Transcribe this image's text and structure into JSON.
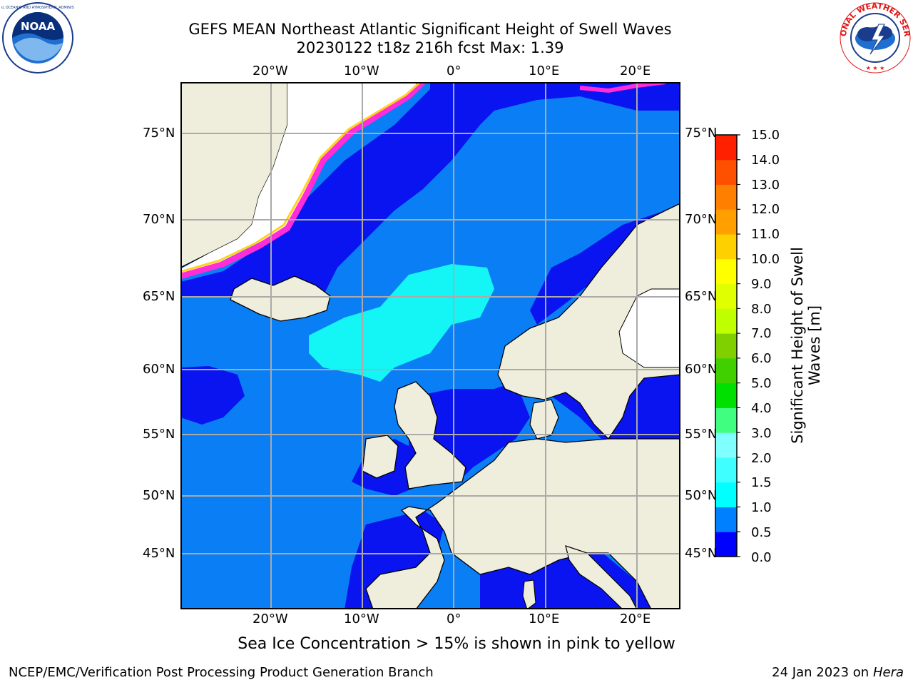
{
  "header": {
    "title_line1": "GEFS MEAN Northeast Atlantic Significant Height of Swell Waves",
    "title_line2": "20230122 t18z 216h fcst   Max: 1.39"
  },
  "logos": {
    "left": {
      "name": "noaa-logo",
      "text": "NOAA",
      "ring_text": "NATIONAL OCEANIC AND ATMOSPHERIC ADMINISTRATION · U.S. DEPARTMENT OF COMMERCE"
    },
    "right": {
      "name": "nws-logo",
      "ring_text": "NATIONAL WEATHER SERVICE"
    }
  },
  "map": {
    "lon_labels": [
      "20°W",
      "10°W",
      "0°",
      "10°E",
      "20°E"
    ],
    "lat_labels": [
      "75°N",
      "70°N",
      "65°N",
      "60°N",
      "55°N",
      "50°N",
      "45°N"
    ],
    "colors": {
      "ocean_low": "#0a14f0",
      "ocean_mid": "#0a7ef5",
      "ocean_high": "#14f5f5",
      "land": "#efeddc",
      "ice": "#ffffff",
      "ice_edge_pink": "#ff2cd8",
      "ice_edge_yellow": "#ffd21e",
      "grid": "#aaaaaa"
    }
  },
  "colorbar": {
    "label": "Significant Height of Swell Waves [m]",
    "ticks": [
      "15.0",
      "14.0",
      "13.0",
      "12.0",
      "11.0",
      "10.0",
      "9.0",
      "8.0",
      "7.0",
      "6.0",
      "5.0",
      "4.0",
      "3.0",
      "2.0",
      "1.5",
      "1.0",
      "0.5",
      "0.0"
    ],
    "bands_bottom_to_top": [
      "#0000ff",
      "#0080ff",
      "#00ffff",
      "#40ffff",
      "#80ffff",
      "#40ff80",
      "#00e000",
      "#40d000",
      "#80d000",
      "#c0ff00",
      "#e0ff00",
      "#ffff00",
      "#ffd000",
      "#ffa000",
      "#ff8000",
      "#ff5000",
      "#ff2000"
    ]
  },
  "caption": "Sea Ice Concentration > 15% is shown in pink to yellow",
  "footer": {
    "left": "NCEP/EMC/Verification Post Processing Product Generation Branch",
    "right_date": "24 Jan 2023 on",
    "right_host": "Hera"
  }
}
